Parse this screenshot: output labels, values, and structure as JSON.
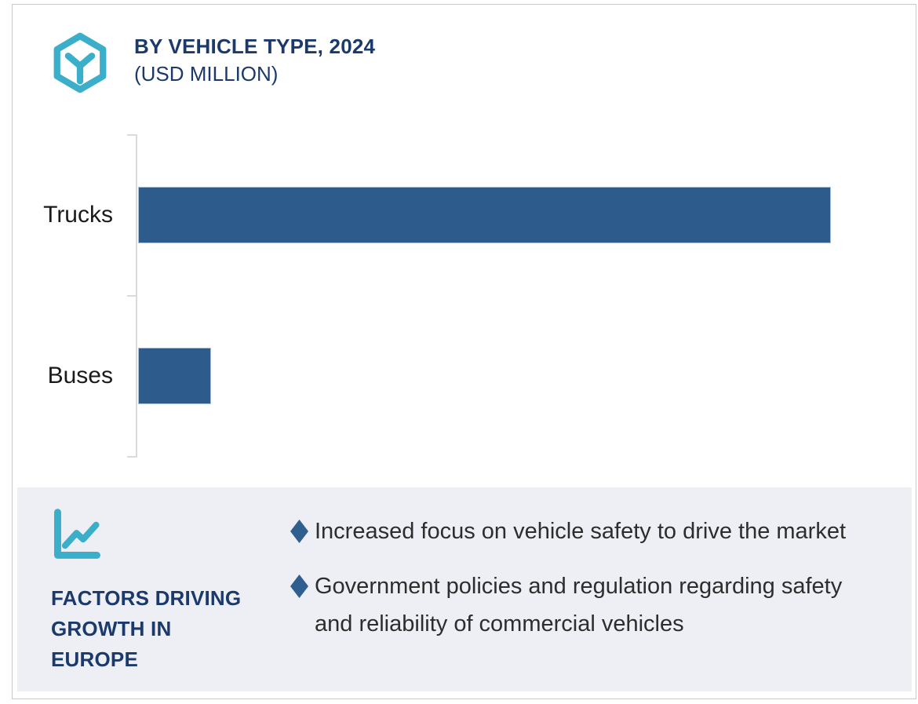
{
  "card": {
    "header": {
      "icon": "cube-hexagon-icon",
      "icon_color": "#3BAEC9",
      "title": "BY VEHICLE TYPE, 2024",
      "subtitle": "(USD MILLION)",
      "title_color": "#1B3A6B"
    },
    "factors_panel": {
      "background": "#EDEFF4",
      "icon": "line-chart-icon",
      "icon_color": "#3BAEC9",
      "heading": "FACTORS DRIVING GROWTH IN EUROPE",
      "heading_color": "#1B3A6B",
      "bullet_marker": "diamond",
      "bullet_marker_color": "#2E5F8E",
      "bullets": [
        "Increased focus on vehicle safety to drive the market",
        "Government policies and regulation regarding safety and reliability of commercial vehicles"
      ]
    }
  },
  "chart_data": {
    "type": "bar",
    "orientation": "horizontal",
    "title": "BY VEHICLE TYPE, 2024",
    "unit": "USD MILLION",
    "categories": [
      "Trucks",
      "Buses"
    ],
    "values": [
      100,
      10.5
    ],
    "value_note": "numeric axis not labeled in figure; values are relative bar lengths as % of longest bar",
    "bar_color": "#2D5C8C",
    "axis_color": "#DBDBDB",
    "label_color": "#1A1A1A",
    "legend": false,
    "grid": false,
    "tick_count": 3
  }
}
